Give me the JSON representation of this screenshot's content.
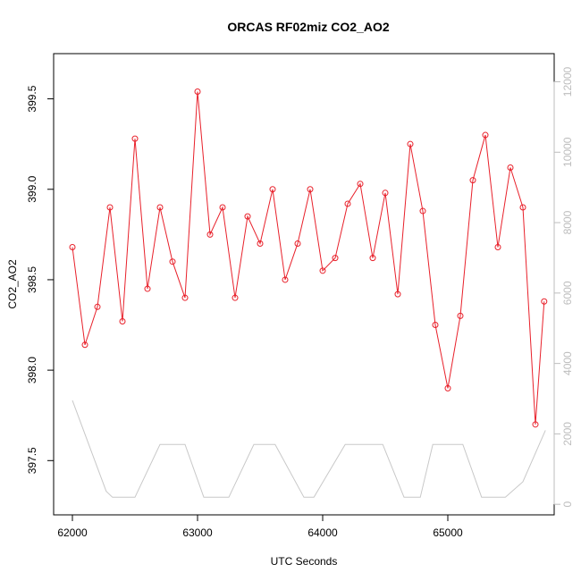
{
  "chart_data": {
    "type": "scatter",
    "title": "ORCAS RF02miz CO2_AO2",
    "xlabel": "UTC Seconds",
    "ylabel": "CO2_AO2",
    "xlim": [
      61850,
      65850
    ],
    "ylim": [
      397.2,
      399.75
    ],
    "y2lim": [
      -300,
      12800
    ],
    "xticks": [
      "62000",
      "63000",
      "64000",
      "65000"
    ],
    "yticks": [
      "397.5",
      "398.0",
      "398.5",
      "399.0",
      "399.5"
    ],
    "y2ticks": [
      "0",
      "2000",
      "4000",
      "6000",
      "8000",
      "10000",
      "12000"
    ],
    "colors": {
      "co2": "#e8202a",
      "altitude": "#c8c8c8",
      "axis_right": "#bdbdbd"
    },
    "grid": false,
    "series": [
      {
        "role": "co2",
        "style": "line+points",
        "x": [
          62000,
          62100,
          62200,
          62300,
          62400,
          62500,
          62600,
          62700,
          62800,
          62900,
          63000,
          63100,
          63200,
          63300,
          63400,
          63500,
          63600,
          63700,
          63800,
          63900,
          64000,
          64100,
          64200,
          64300,
          64400,
          64500,
          64600,
          64700,
          64800,
          64900,
          65000,
          65100,
          65200,
          65300,
          65400,
          65500,
          65600,
          65700,
          65770
        ],
        "values": [
          398.68,
          398.14,
          398.35,
          398.9,
          398.27,
          399.28,
          398.45,
          398.9,
          398.6,
          398.4,
          399.54,
          398.75,
          398.9,
          398.4,
          398.85,
          398.7,
          399.0,
          398.5,
          398.7,
          399.0,
          398.55,
          398.62,
          398.92,
          399.03,
          398.62,
          398.98,
          398.42,
          399.25,
          398.88,
          398.25,
          397.9,
          398.3,
          399.05,
          399.3,
          398.68,
          399.12,
          398.9,
          397.7,
          398.38
        ]
      },
      {
        "role": "altitude",
        "style": "line",
        "axis": "right",
        "x": [
          62000,
          62270,
          62320,
          62500,
          62700,
          62900,
          63050,
          63250,
          63450,
          63620,
          63850,
          63930,
          64180,
          64480,
          64650,
          64780,
          64880,
          65120,
          65270,
          65460,
          65600,
          65780
        ],
        "values": [
          2950,
          370,
          200,
          200,
          1700,
          1700,
          200,
          200,
          1700,
          1700,
          200,
          200,
          1700,
          1700,
          200,
          200,
          1700,
          1700,
          200,
          200,
          640,
          2100
        ]
      }
    ]
  }
}
